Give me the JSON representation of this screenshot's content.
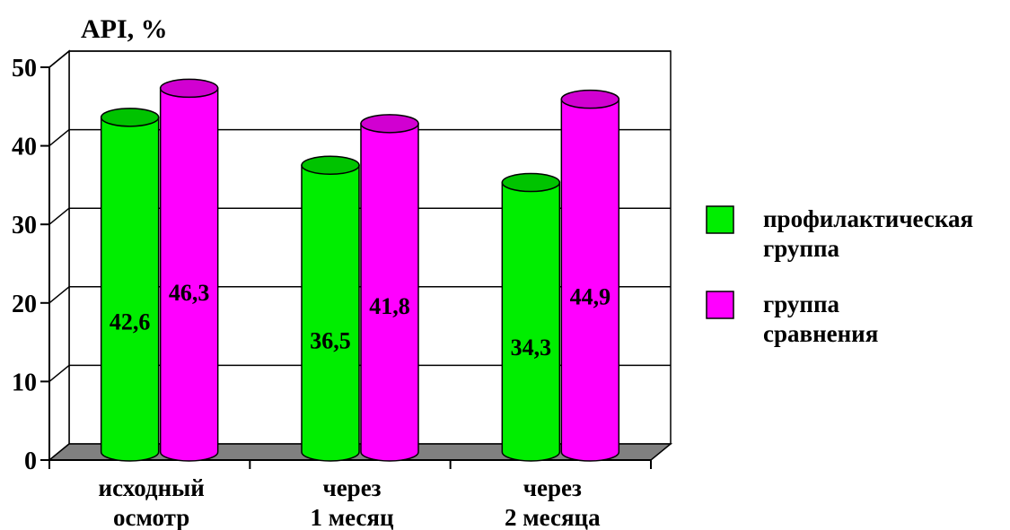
{
  "chart_data": {
    "type": "bar",
    "ylabel": "API, %",
    "ylim": [
      0,
      50
    ],
    "yticks": [
      "0",
      "10",
      "20",
      "30",
      "40",
      "50"
    ],
    "categories": [
      [
        "исходный",
        "осмотр"
      ],
      [
        "через",
        "1 месяц"
      ],
      [
        "через",
        "2 месяца"
      ]
    ],
    "series": [
      {
        "name": [
          "профилактическая",
          "группа"
        ],
        "color": "#00ee00",
        "values": [
          42.6,
          36.5,
          34.3
        ],
        "labels": [
          "42,6",
          "36,5",
          "34,3"
        ]
      },
      {
        "name": [
          "группа",
          "сравнения"
        ],
        "color": "#ff00ff",
        "values": [
          46.3,
          41.8,
          44.9
        ],
        "labels": [
          "46,3",
          "41,8",
          "44,9"
        ]
      }
    ],
    "grid": true,
    "legend": "right",
    "style": "3d-cylinder"
  }
}
